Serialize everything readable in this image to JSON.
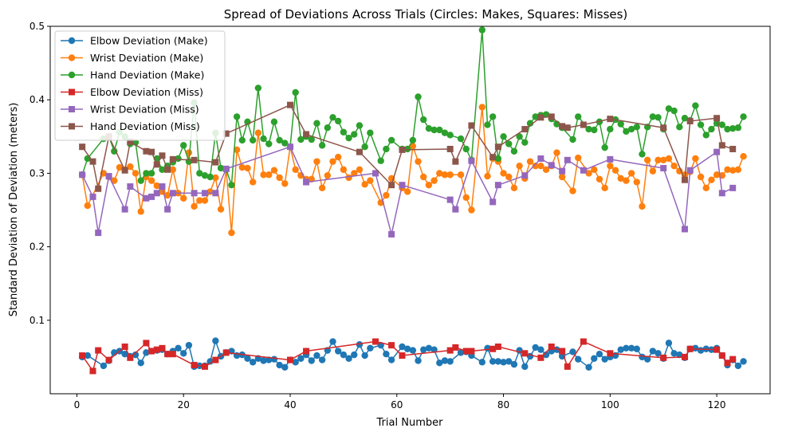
{
  "chart_data": {
    "type": "line",
    "title": "Spread of Deviations Across Trials (Circles: Makes, Squares: Misses)",
    "xlabel": "Trial Number",
    "ylabel": "Standard Deviation of Deviation (meters)",
    "xlim": [
      -5,
      130
    ],
    "ylim": [
      0.0,
      0.5
    ],
    "xticks": [
      0,
      20,
      40,
      60,
      80,
      100,
      120
    ],
    "yticks": [
      0.1,
      0.2,
      0.3,
      0.4,
      0.5
    ],
    "ytick_labels": [
      "0.1",
      "0.2",
      "0.3",
      "0.4",
      "0.5"
    ],
    "grid": false,
    "legend_position": "top-left",
    "makes_x": [
      1,
      2,
      5,
      6,
      7,
      8,
      9,
      10,
      11,
      12,
      13,
      14,
      15,
      16,
      17,
      18,
      19,
      20,
      21,
      22,
      23,
      24,
      25,
      26,
      27,
      28,
      29,
      30,
      31,
      32,
      33,
      34,
      35,
      36,
      37,
      38,
      39,
      40,
      41,
      42,
      43,
      44,
      45,
      46,
      47,
      48,
      49,
      50,
      51,
      52,
      53,
      54,
      55,
      57,
      58,
      59,
      61,
      62,
      63,
      64,
      65,
      66,
      67,
      68,
      69,
      70,
      72,
      73,
      74,
      76,
      77,
      78,
      79,
      80,
      81,
      82,
      83,
      84,
      85,
      86,
      87,
      88,
      89,
      90,
      91,
      93,
      94,
      96,
      97,
      98,
      99,
      100,
      101,
      102,
      103,
      104,
      105,
      106,
      107,
      108,
      109,
      110,
      111,
      112,
      113,
      114,
      115,
      116,
      117,
      118,
      119,
      120,
      121,
      122,
      123,
      124,
      125
    ],
    "series": [
      {
        "name": "Elbow Deviation (Make)",
        "color": "#1f77b4",
        "marker": "circle",
        "values": [
          0.05,
          0.052,
          0.038,
          0.045,
          0.056,
          0.058,
          0.054,
          0.051,
          0.053,
          0.042,
          0.056,
          0.058,
          0.059,
          0.06,
          0.054,
          0.058,
          0.062,
          0.055,
          0.066,
          0.037,
          0.038,
          0.038,
          0.044,
          0.072,
          0.051,
          0.056,
          0.058,
          0.052,
          0.053,
          0.048,
          0.043,
          0.048,
          0.045,
          0.046,
          0.047,
          0.039,
          0.036,
          0.046,
          0.043,
          0.048,
          0.053,
          0.045,
          0.052,
          0.046,
          0.059,
          0.071,
          0.058,
          0.053,
          0.048,
          0.053,
          0.067,
          0.052,
          0.062,
          0.066,
          0.054,
          0.046,
          0.064,
          0.061,
          0.059,
          0.045,
          0.06,
          0.062,
          0.06,
          0.042,
          0.045,
          0.044,
          0.056,
          0.057,
          0.052,
          0.043,
          0.062,
          0.044,
          0.044,
          0.043,
          0.044,
          0.04,
          0.059,
          0.037,
          0.051,
          0.063,
          0.06,
          0.053,
          0.058,
          0.06,
          0.051,
          0.057,
          0.047,
          0.036,
          0.048,
          0.054,
          0.047,
          0.05,
          0.052,
          0.06,
          0.062,
          0.062,
          0.061,
          0.05,
          0.047,
          0.058,
          0.055,
          0.048,
          0.069,
          0.055,
          0.053,
          0.049,
          0.061,
          0.062,
          0.059,
          0.061,
          0.06,
          0.062,
          0.052,
          0.039,
          0.046,
          0.038,
          0.044
        ]
      },
      {
        "name": "Wrist Deviation (Make)",
        "color": "#ff7f0e",
        "marker": "circle",
        "values": [
          0.298,
          0.256,
          0.3,
          0.295,
          0.29,
          0.308,
          0.305,
          0.309,
          0.3,
          0.248,
          0.295,
          0.29,
          0.283,
          0.275,
          0.27,
          0.305,
          0.273,
          0.266,
          0.328,
          0.255,
          0.263,
          0.263,
          0.275,
          0.294,
          0.251,
          0.305,
          0.219,
          0.332,
          0.308,
          0.307,
          0.288,
          0.355,
          0.298,
          0.298,
          0.304,
          0.294,
          0.286,
          0.336,
          0.305,
          0.297,
          0.292,
          0.292,
          0.316,
          0.28,
          0.297,
          0.316,
          0.322,
          0.305,
          0.294,
          0.3,
          0.305,
          0.285,
          0.29,
          0.26,
          0.27,
          0.293,
          0.28,
          0.275,
          0.337,
          0.316,
          0.295,
          0.284,
          0.29,
          0.3,
          0.298,
          0.298,
          0.298,
          0.267,
          0.25,
          0.39,
          0.296,
          0.32,
          0.316,
          0.3,
          0.295,
          0.28,
          0.31,
          0.293,
          0.316,
          0.31,
          0.31,
          0.305,
          0.31,
          0.328,
          0.295,
          0.276,
          0.321,
          0.3,
          0.305,
          0.292,
          0.28,
          0.31,
          0.304,
          0.293,
          0.29,
          0.3,
          0.288,
          0.255,
          0.318,
          0.303,
          0.318,
          0.318,
          0.32,
          0.31,
          0.303,
          0.298,
          0.302,
          0.32,
          0.295,
          0.28,
          0.291,
          0.298,
          0.297,
          0.305,
          0.304,
          0.305,
          0.323
        ]
      },
      {
        "name": "Hand Deviation (Make)",
        "color": "#2ca02c",
        "marker": "circle",
        "values": [
          0.298,
          0.32,
          0.347,
          0.35,
          0.33,
          0.356,
          0.35,
          0.34,
          0.342,
          0.29,
          0.3,
          0.3,
          0.32,
          0.305,
          0.31,
          0.315,
          0.32,
          0.338,
          0.316,
          0.396,
          0.3,
          0.297,
          0.295,
          0.355,
          0.307,
          0.305,
          0.284,
          0.377,
          0.345,
          0.37,
          0.345,
          0.416,
          0.347,
          0.34,
          0.37,
          0.345,
          0.341,
          0.336,
          0.41,
          0.346,
          0.35,
          0.346,
          0.368,
          0.338,
          0.362,
          0.376,
          0.371,
          0.356,
          0.348,
          0.353,
          0.365,
          0.336,
          0.355,
          0.317,
          0.333,
          0.345,
          0.333,
          0.333,
          0.345,
          0.404,
          0.373,
          0.361,
          0.359,
          0.359,
          0.355,
          0.352,
          0.347,
          0.333,
          0.318,
          0.495,
          0.366,
          0.377,
          0.32,
          0.35,
          0.34,
          0.33,
          0.35,
          0.342,
          0.368,
          0.377,
          0.379,
          0.38,
          0.374,
          0.367,
          0.362,
          0.346,
          0.377,
          0.36,
          0.359,
          0.37,
          0.335,
          0.36,
          0.373,
          0.367,
          0.357,
          0.36,
          0.363,
          0.326,
          0.363,
          0.377,
          0.376,
          0.36,
          0.388,
          0.385,
          0.363,
          0.375,
          0.372,
          0.392,
          0.366,
          0.352,
          0.36,
          0.368,
          0.366,
          0.36,
          0.361,
          0.362,
          0.377
        ]
      },
      {
        "name": "Elbow Deviation (Miss)",
        "color": "#d62728",
        "marker": "square",
        "x": [
          1,
          3,
          4,
          6,
          9,
          10,
          13,
          14,
          15,
          16,
          17,
          18,
          22,
          24,
          26,
          28,
          40,
          43,
          56,
          59,
          61,
          70,
          71,
          73,
          74,
          78,
          79,
          84,
          87,
          89,
          91,
          92,
          95,
          100,
          110,
          114,
          115,
          120,
          121,
          122,
          123
        ],
        "values": [
          0.052,
          0.031,
          0.059,
          0.046,
          0.064,
          0.049,
          0.069,
          0.058,
          0.06,
          0.062,
          0.054,
          0.054,
          0.039,
          0.037,
          0.046,
          0.056,
          0.046,
          0.058,
          0.071,
          0.066,
          0.052,
          0.059,
          0.063,
          0.058,
          0.058,
          0.061,
          0.064,
          0.055,
          0.049,
          0.064,
          0.058,
          0.037,
          0.071,
          0.055,
          0.049,
          0.05,
          0.061,
          0.06,
          0.052,
          0.042,
          0.047
        ]
      },
      {
        "name": "Wrist Deviation (Miss)",
        "color": "#9467bd",
        "marker": "square",
        "x": [
          1,
          3,
          4,
          6,
          9,
          10,
          13,
          14,
          15,
          16,
          17,
          18,
          22,
          24,
          26,
          28,
          40,
          43,
          56,
          59,
          61,
          70,
          71,
          74,
          78,
          79,
          84,
          87,
          89,
          91,
          92,
          95,
          100,
          110,
          114,
          115,
          120,
          121,
          123
        ],
        "values": [
          0.298,
          0.268,
          0.219,
          0.296,
          0.251,
          0.282,
          0.266,
          0.268,
          0.273,
          0.282,
          0.251,
          0.273,
          0.273,
          0.273,
          0.273,
          0.306,
          0.336,
          0.288,
          0.3,
          0.217,
          0.284,
          0.264,
          0.251,
          0.317,
          0.261,
          0.284,
          0.297,
          0.32,
          0.311,
          0.303,
          0.318,
          0.304,
          0.319,
          0.307,
          0.224,
          0.304,
          0.329,
          0.273,
          0.28
        ]
      },
      {
        "name": "Hand Deviation (Miss)",
        "color": "#8c564b",
        "marker": "square",
        "x": [
          1,
          3,
          4,
          6,
          9,
          10,
          13,
          14,
          15,
          16,
          17,
          18,
          22,
          26,
          28,
          40,
          43,
          53,
          59,
          61,
          70,
          71,
          74,
          78,
          79,
          84,
          87,
          89,
          91,
          92,
          95,
          100,
          110,
          114,
          115,
          120,
          121,
          123
        ],
        "values": [
          0.336,
          0.316,
          0.279,
          0.35,
          0.304,
          0.343,
          0.33,
          0.329,
          0.312,
          0.324,
          0.305,
          0.319,
          0.318,
          0.315,
          0.354,
          0.393,
          0.353,
          0.329,
          0.284,
          0.332,
          0.333,
          0.316,
          0.365,
          0.322,
          0.336,
          0.36,
          0.376,
          0.377,
          0.364,
          0.362,
          0.366,
          0.374,
          0.362,
          0.291,
          0.371,
          0.375,
          0.338,
          0.333
        ]
      }
    ]
  }
}
